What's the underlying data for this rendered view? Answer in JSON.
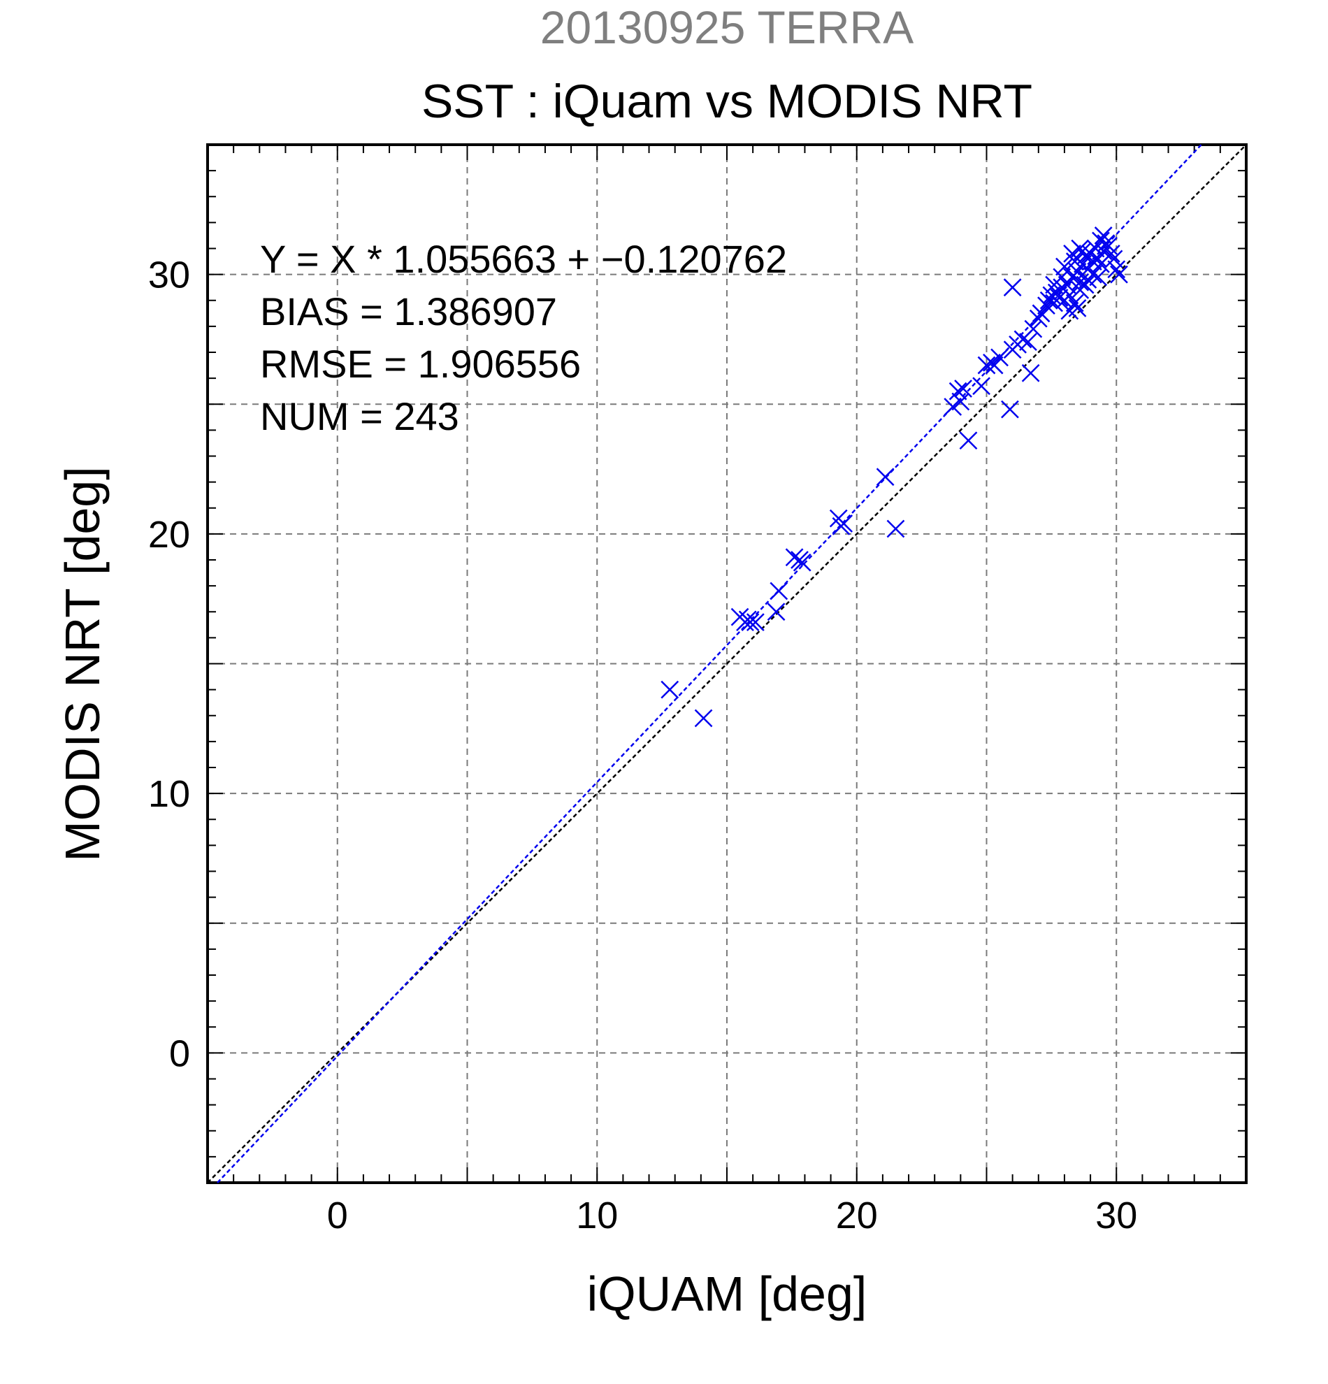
{
  "colors": {
    "background": "#ffffff",
    "axis": "#000000",
    "grid": "#7a7a7a",
    "points": "#0000ee",
    "fit_line": "#0000ee",
    "identity_line": "#000000",
    "supertitle": "#7f7f7f",
    "title": "#000000"
  },
  "chart_data": {
    "type": "scatter",
    "supertitle": "20130925 TERRA",
    "title": "SST : iQuam vs MODIS NRT",
    "xlabel": "iQUAM [deg]",
    "ylabel": "MODIS NRT [deg]",
    "xlim": [
      -5,
      35
    ],
    "ylim": [
      -5,
      35
    ],
    "xticks": [
      0,
      10,
      20,
      30
    ],
    "yticks": [
      0,
      10,
      20,
      30
    ],
    "xtick_labels": [
      "0",
      "10",
      "20",
      "30"
    ],
    "ytick_labels": [
      "0",
      "10",
      "20",
      "30"
    ],
    "grid_step": 5,
    "minor_step": 1,
    "grid": true,
    "marker": "x",
    "stats": {
      "equation": "Y = X * 1.055663 + −0.120762",
      "bias": "BIAS = 1.386907",
      "rmse": "RMSE = 1.906556",
      "num": "NUM = 243"
    },
    "fit": {
      "slope": 1.055663,
      "intercept": -0.120762
    },
    "identity": {
      "slope": 1,
      "intercept": 0
    },
    "points": [
      [
        12.8,
        14.0
      ],
      [
        14.1,
        12.9
      ],
      [
        15.5,
        16.8
      ],
      [
        15.7,
        16.6
      ],
      [
        15.8,
        16.7
      ],
      [
        15.9,
        16.6
      ],
      [
        16.1,
        16.6
      ],
      [
        16.9,
        17.0
      ],
      [
        17.0,
        17.8
      ],
      [
        17.6,
        19.1
      ],
      [
        17.8,
        19.0
      ],
      [
        17.9,
        18.9
      ],
      [
        19.3,
        20.6
      ],
      [
        19.4,
        20.3
      ],
      [
        19.5,
        20.4
      ],
      [
        21.1,
        22.2
      ],
      [
        21.5,
        20.2
      ],
      [
        23.7,
        24.9
      ],
      [
        23.9,
        25.5
      ],
      [
        24.0,
        25.1
      ],
      [
        24.1,
        25.6
      ],
      [
        24.3,
        23.6
      ],
      [
        24.8,
        25.7
      ],
      [
        25.0,
        26.5
      ],
      [
        25.2,
        26.6
      ],
      [
        25.3,
        26.5
      ],
      [
        25.5,
        26.8
      ],
      [
        25.9,
        24.8
      ],
      [
        26.0,
        27.1
      ],
      [
        26.2,
        27.3
      ],
      [
        26.4,
        27.5
      ],
      [
        26.6,
        27.4
      ],
      [
        26.7,
        26.2
      ],
      [
        26.8,
        27.9
      ],
      [
        27.0,
        28.3
      ],
      [
        27.1,
        28.5
      ],
      [
        27.3,
        28.8
      ],
      [
        27.4,
        29.0
      ],
      [
        27.5,
        29.2
      ],
      [
        27.6,
        28.9
      ],
      [
        27.7,
        29.3
      ],
      [
        27.8,
        29.1
      ],
      [
        27.9,
        29.5
      ],
      [
        28.0,
        30.3
      ],
      [
        28.1,
        29.6
      ],
      [
        28.2,
        29.2
      ],
      [
        28.3,
        29.9
      ],
      [
        28.4,
        30.5
      ],
      [
        28.5,
        30.1
      ],
      [
        28.6,
        29.7
      ],
      [
        28.7,
        30.4
      ],
      [
        28.8,
        30.7
      ],
      [
        28.9,
        30.2
      ],
      [
        29.0,
        30.8
      ],
      [
        29.1,
        30.5
      ],
      [
        29.2,
        31.0
      ],
      [
        29.3,
        30.6
      ],
      [
        29.4,
        31.3
      ],
      [
        29.5,
        30.9
      ],
      [
        29.6,
        31.2
      ],
      [
        29.8,
        30.8
      ],
      [
        30.0,
        30.2
      ],
      [
        30.1,
        30.0
      ],
      [
        26.0,
        29.5
      ],
      [
        28.2,
        28.6
      ],
      [
        28.4,
        28.9
      ],
      [
        28.6,
        29.4
      ],
      [
        28.9,
        29.8
      ],
      [
        29.1,
        30.0
      ],
      [
        28.3,
        30.8
      ],
      [
        28.6,
        31.0
      ],
      [
        27.9,
        29.9
      ],
      [
        29.4,
        30.4
      ],
      [
        29.7,
        31.1
      ],
      [
        28.0,
        29.0
      ],
      [
        28.8,
        29.6
      ],
      [
        29.3,
        29.9
      ],
      [
        28.5,
        28.7
      ],
      [
        27.6,
        29.6
      ],
      [
        29.5,
        31.5
      ],
      [
        29.9,
        30.6
      ],
      [
        28.7,
        30.9
      ]
    ]
  }
}
